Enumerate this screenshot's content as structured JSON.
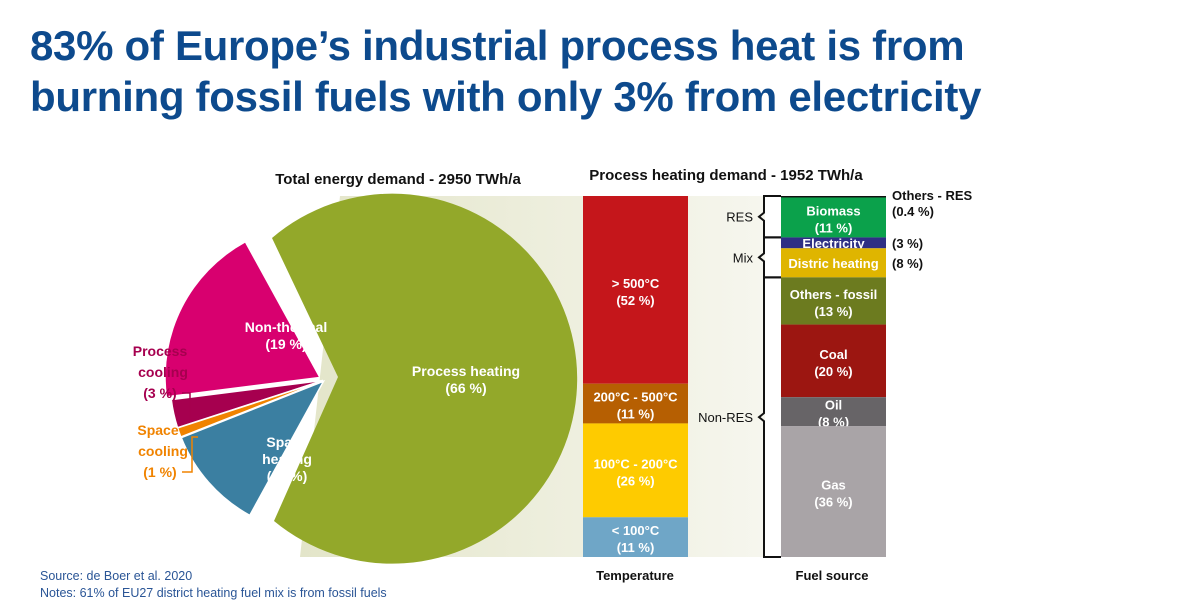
{
  "title": {
    "line1": "83% of Europe’s industrial process heat is from",
    "line2": "burning fossil fuels with only 3% from electricity"
  },
  "footer": {
    "source": "Source: de Boer et al. 2020",
    "notes": "Notes: 61% of EU27 district heating fuel mix is from fossil fuels"
  },
  "colors": {
    "title": "#0d4a8d",
    "funnel": "#e4e6cc"
  },
  "chart_data": [
    {
      "type": "pie",
      "title": "Total energy demand - 2950 TWh/a",
      "slices": [
        {
          "label": "Process heating",
          "label_lines": [
            "Process heating"
          ],
          "pct_text": "(66 %)",
          "value": 66,
          "color": "#93a82a"
        },
        {
          "label": "Non-thermal",
          "label_lines": [
            "Non-thermal"
          ],
          "pct_text": "(19 %)",
          "value": 19,
          "color": "#d8006f"
        },
        {
          "label": "Process cooling",
          "label_lines": [
            "Process",
            "cooling"
          ],
          "pct_text": "(3 %)",
          "value": 3,
          "color": "#a6004f"
        },
        {
          "label": "Space cooling",
          "label_lines": [
            "Space",
            "cooling"
          ],
          "pct_text": "(1 %)",
          "value": 1,
          "color": "#f08300"
        },
        {
          "label": "Space heating",
          "label_lines": [
            "Space",
            "heating"
          ],
          "pct_text": "(11 %)",
          "value": 11,
          "color": "#3b7fa1"
        }
      ]
    },
    {
      "type": "bar",
      "stacked": true,
      "title": "Process heating demand - 1952 TWh/a",
      "categories": [
        "Temperature",
        "Fuel source"
      ],
      "temperature": [
        {
          "label": "> 500°C",
          "pct_text": "(52 %)",
          "value": 52,
          "color": "#c5161b"
        },
        {
          "label": "200°C - 500°C",
          "pct_text": "(11 %)",
          "value": 11,
          "color": "#b65f02"
        },
        {
          "label": "100°C - 200°C",
          "pct_text": "(26 %)",
          "value": 26,
          "color": "#fecb00"
        },
        {
          "label": "< 100°C",
          "pct_text": "(11 %)",
          "value": 11,
          "color": "#6fa6c7"
        }
      ],
      "fuel": [
        {
          "label": "Others - RES",
          "pct_text": "(0.4 %)",
          "value": 0.4,
          "color": "#111111",
          "outside": true
        },
        {
          "label": "Biomass",
          "pct_text": "(11 %)",
          "value": 11,
          "color": "#0ba14b"
        },
        {
          "label": "Electricity",
          "pct_text": "(3 %)",
          "value": 3,
          "color": "#2e2f84",
          "outside": true
        },
        {
          "label": "Distric heating",
          "pct_text": "(8 %)",
          "value": 8,
          "color": "#dfb500",
          "outside": true
        },
        {
          "label": "Others - fossil",
          "pct_text": "(13 %)",
          "value": 13,
          "color": "#6c7b1f"
        },
        {
          "label": "Coal",
          "pct_text": "(20 %)",
          "value": 20,
          "color": "#9c1611"
        },
        {
          "label": "Oil",
          "pct_text": "(8 %)",
          "value": 8,
          "color": "#676467"
        },
        {
          "label": "Gas",
          "pct_text": "(36 %)",
          "value": 36,
          "color": "#a9a4a7"
        }
      ],
      "groups": [
        {
          "label": "RES",
          "from": 0,
          "to": 2
        },
        {
          "label": "Mix",
          "from": 2,
          "to": 4
        },
        {
          "label": "Non-RES",
          "from": 4,
          "to": 8
        }
      ]
    }
  ]
}
